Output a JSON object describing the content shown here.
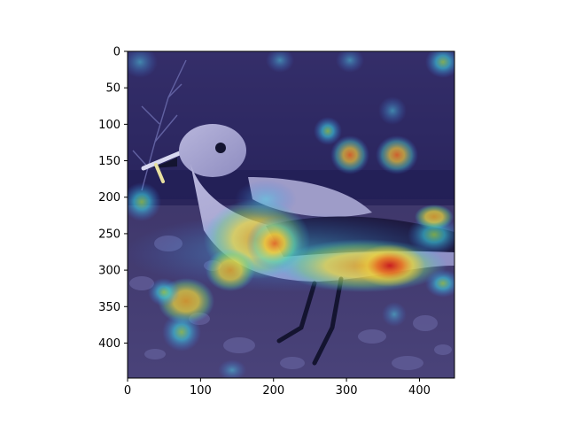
{
  "figure": {
    "x_ticks": [
      {
        "value": 0,
        "label": "0"
      },
      {
        "value": 100,
        "label": "100"
      },
      {
        "value": 200,
        "label": "200"
      },
      {
        "value": 300,
        "label": "300"
      },
      {
        "value": 400,
        "label": "400"
      }
    ],
    "y_ticks": [
      {
        "value": 0,
        "label": "0"
      },
      {
        "value": 50,
        "label": "50"
      },
      {
        "value": 100,
        "label": "100"
      },
      {
        "value": 150,
        "label": "150"
      },
      {
        "value": 200,
        "label": "200"
      },
      {
        "value": 250,
        "label": "250"
      },
      {
        "value": 300,
        "label": "300"
      },
      {
        "value": 350,
        "label": "350"
      },
      {
        "value": 400,
        "label": "400"
      }
    ],
    "x_range": [
      0,
      448
    ],
    "y_range": [
      0,
      448
    ],
    "y_axis_inverted": true,
    "image_subject": "bird standing on rocky ground with heatmap overlay",
    "colors": {
      "background": "#ffffff",
      "overlay_base": "#2a2a8a",
      "hot": "#c8141e",
      "warm": "#f0d23c",
      "cool": "#3cc8e6"
    }
  }
}
